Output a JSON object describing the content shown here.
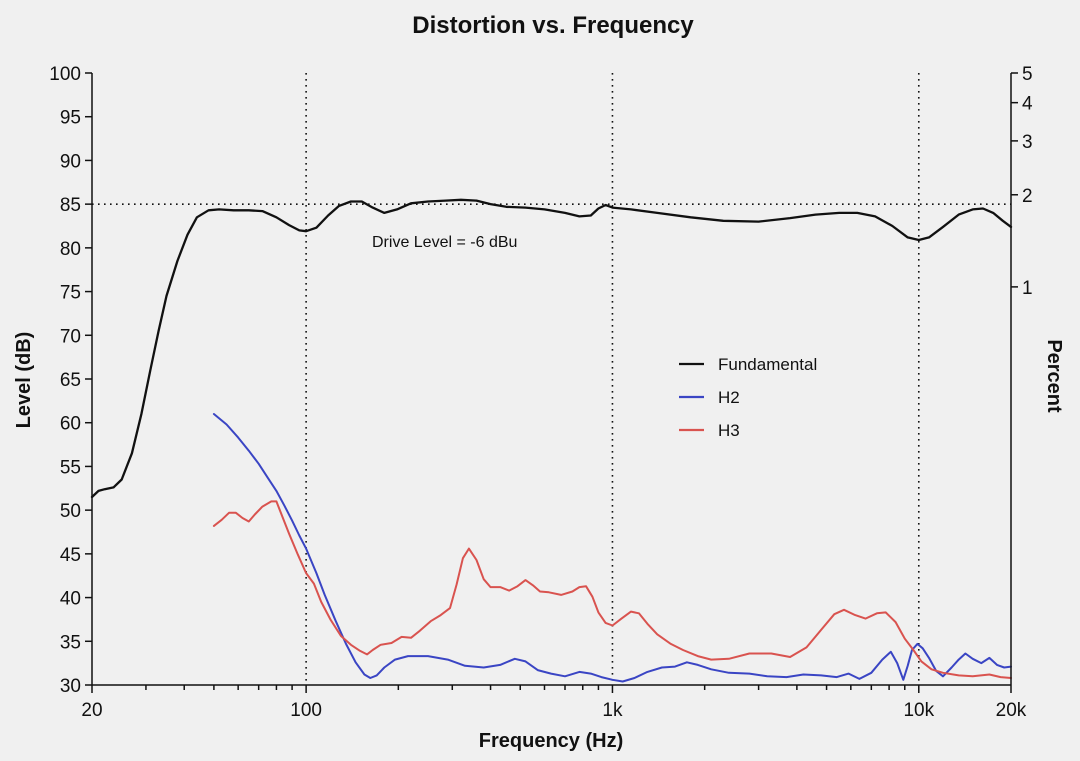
{
  "chart_data": {
    "type": "line",
    "title": "Distortion vs. Frequency",
    "xlabel": "Frequency (Hz)",
    "ylabel": "Level (dB)",
    "y2label": "Percent",
    "xscale": "log",
    "xlim": [
      20,
      20000
    ],
    "ylim": [
      30,
      100
    ],
    "y2lim": [
      0.05,
      5
    ],
    "y2scale": "log",
    "x_ticks": [
      {
        "value": 20,
        "label": "20"
      },
      {
        "value": 100,
        "label": "100"
      },
      {
        "value": 1000,
        "label": "1k"
      },
      {
        "value": 10000,
        "label": "10k"
      },
      {
        "value": 20000,
        "label": "20k"
      }
    ],
    "y_ticks": [
      {
        "value": 100,
        "label": "100"
      },
      {
        "value": 95,
        "label": "95"
      },
      {
        "value": 90,
        "label": "90"
      },
      {
        "value": 85,
        "label": "85"
      },
      {
        "value": 80,
        "label": "80"
      },
      {
        "value": 75,
        "label": "75"
      },
      {
        "value": 70,
        "label": "70"
      },
      {
        "value": 65,
        "label": "65"
      },
      {
        "value": 60,
        "label": "60"
      },
      {
        "value": 55,
        "label": "55"
      },
      {
        "value": 50,
        "label": "50"
      },
      {
        "value": 45,
        "label": "45"
      },
      {
        "value": 40,
        "label": "40"
      },
      {
        "value": 35,
        "label": "35"
      },
      {
        "value": 30,
        "label": "30"
      }
    ],
    "y2_ticks": [
      {
        "value": 5,
        "label": "5"
      },
      {
        "value": 4,
        "label": "4"
      },
      {
        "value": 3,
        "label": "3"
      },
      {
        "value": 2,
        "label": "2"
      },
      {
        "value": 1,
        "label": "1"
      }
    ],
    "reference_lines": {
      "vertical_x": [
        100,
        1000,
        10000
      ],
      "horizontal_y": 85
    },
    "annotation": "Drive Level = -6 dBu",
    "legend": {
      "position": "center-right"
    },
    "series": [
      {
        "name": "Fundamental",
        "color": "#111111",
        "points": [
          [
            20,
            51.5
          ],
          [
            21,
            52.2
          ],
          [
            22,
            52.4
          ],
          [
            23.5,
            52.6
          ],
          [
            25,
            53.5
          ],
          [
            27,
            56.5
          ],
          [
            29,
            61
          ],
          [
            31,
            66
          ],
          [
            33,
            70.5
          ],
          [
            35,
            74.5
          ],
          [
            38,
            78.5
          ],
          [
            41,
            81.5
          ],
          [
            44,
            83.5
          ],
          [
            48,
            84.3
          ],
          [
            52,
            84.4
          ],
          [
            58,
            84.3
          ],
          [
            65,
            84.3
          ],
          [
            72,
            84.2
          ],
          [
            80,
            83.5
          ],
          [
            88,
            82.6
          ],
          [
            95,
            82.0
          ],
          [
            100,
            81.9
          ],
          [
            108,
            82.3
          ],
          [
            118,
            83.7
          ],
          [
            128,
            84.8
          ],
          [
            140,
            85.3
          ],
          [
            152,
            85.3
          ],
          [
            165,
            84.6
          ],
          [
            180,
            84.0
          ],
          [
            198,
            84.4
          ],
          [
            220,
            85.1
          ],
          [
            250,
            85.3
          ],
          [
            285,
            85.4
          ],
          [
            320,
            85.5
          ],
          [
            360,
            85.4
          ],
          [
            400,
            85.0
          ],
          [
            450,
            84.7
          ],
          [
            520,
            84.6
          ],
          [
            600,
            84.4
          ],
          [
            700,
            84.0
          ],
          [
            780,
            83.6
          ],
          [
            850,
            83.7
          ],
          [
            900,
            84.5
          ],
          [
            950,
            84.9
          ],
          [
            1000,
            84.6
          ],
          [
            1150,
            84.4
          ],
          [
            1400,
            84.0
          ],
          [
            1800,
            83.5
          ],
          [
            2300,
            83.1
          ],
          [
            3000,
            83.0
          ],
          [
            3800,
            83.4
          ],
          [
            4600,
            83.8
          ],
          [
            5500,
            84.0
          ],
          [
            6300,
            84.0
          ],
          [
            7200,
            83.6
          ],
          [
            8200,
            82.5
          ],
          [
            9200,
            81.2
          ],
          [
            10000,
            80.9
          ],
          [
            10800,
            81.2
          ],
          [
            12000,
            82.4
          ],
          [
            13500,
            83.8
          ],
          [
            15000,
            84.4
          ],
          [
            16200,
            84.5
          ],
          [
            17500,
            84.0
          ],
          [
            18800,
            83.1
          ],
          [
            20000,
            82.4
          ]
        ]
      },
      {
        "name": "H2",
        "color": "#3a45c4",
        "points": [
          [
            50,
            61.0
          ],
          [
            55,
            59.8
          ],
          [
            60,
            58.3
          ],
          [
            65,
            56.8
          ],
          [
            70,
            55.3
          ],
          [
            75,
            53.7
          ],
          [
            80,
            52.2
          ],
          [
            85,
            50.5
          ],
          [
            90,
            48.8
          ],
          [
            95,
            47.1
          ],
          [
            100,
            45.6
          ],
          [
            108,
            42.8
          ],
          [
            115,
            40.3
          ],
          [
            125,
            37.3
          ],
          [
            135,
            34.7
          ],
          [
            145,
            32.6
          ],
          [
            155,
            31.2
          ],
          [
            162,
            30.8
          ],
          [
            170,
            31.1
          ],
          [
            180,
            32.0
          ],
          [
            195,
            32.9
          ],
          [
            215,
            33.3
          ],
          [
            250,
            33.3
          ],
          [
            290,
            32.9
          ],
          [
            330,
            32.2
          ],
          [
            380,
            32.0
          ],
          [
            430,
            32.3
          ],
          [
            480,
            33.0
          ],
          [
            520,
            32.7
          ],
          [
            570,
            31.7
          ],
          [
            630,
            31.3
          ],
          [
            700,
            31.0
          ],
          [
            780,
            31.5
          ],
          [
            850,
            31.3
          ],
          [
            920,
            30.9
          ],
          [
            1000,
            30.6
          ],
          [
            1080,
            30.4
          ],
          [
            1180,
            30.8
          ],
          [
            1300,
            31.5
          ],
          [
            1450,
            32.0
          ],
          [
            1600,
            32.1
          ],
          [
            1750,
            32.6
          ],
          [
            1900,
            32.3
          ],
          [
            2100,
            31.8
          ],
          [
            2400,
            31.4
          ],
          [
            2800,
            31.3
          ],
          [
            3200,
            31.0
          ],
          [
            3700,
            30.9
          ],
          [
            4200,
            31.2
          ],
          [
            4800,
            31.1
          ],
          [
            5400,
            30.9
          ],
          [
            5900,
            31.3
          ],
          [
            6400,
            30.7
          ],
          [
            7000,
            31.4
          ],
          [
            7600,
            32.9
          ],
          [
            8100,
            33.8
          ],
          [
            8500,
            32.5
          ],
          [
            8900,
            30.6
          ],
          [
            9200,
            32.2
          ],
          [
            9500,
            34.0
          ],
          [
            9900,
            34.7
          ],
          [
            10300,
            34.2
          ],
          [
            10800,
            33.1
          ],
          [
            11400,
            31.6
          ],
          [
            12000,
            31.0
          ],
          [
            12800,
            32.0
          ],
          [
            13500,
            32.9
          ],
          [
            14200,
            33.6
          ],
          [
            15000,
            33.0
          ],
          [
            16000,
            32.5
          ],
          [
            17000,
            33.1
          ],
          [
            18000,
            32.3
          ],
          [
            19000,
            32.0
          ],
          [
            20000,
            32.1
          ]
        ]
      },
      {
        "name": "H3",
        "color": "#d9534f",
        "points": [
          [
            50,
            48.2
          ],
          [
            53,
            48.9
          ],
          [
            56,
            49.7
          ],
          [
            59,
            49.7
          ],
          [
            62,
            49.1
          ],
          [
            65,
            48.7
          ],
          [
            68,
            49.5
          ],
          [
            72,
            50.4
          ],
          [
            77,
            51.0
          ],
          [
            80,
            51.0
          ],
          [
            84,
            49.1
          ],
          [
            88,
            47.3
          ],
          [
            94,
            44.9
          ],
          [
            100,
            42.8
          ],
          [
            106,
            41.6
          ],
          [
            112,
            39.5
          ],
          [
            120,
            37.5
          ],
          [
            130,
            35.6
          ],
          [
            140,
            34.6
          ],
          [
            150,
            33.9
          ],
          [
            158,
            33.5
          ],
          [
            165,
            34.0
          ],
          [
            175,
            34.6
          ],
          [
            190,
            34.8
          ],
          [
            205,
            35.5
          ],
          [
            220,
            35.4
          ],
          [
            235,
            36.2
          ],
          [
            255,
            37.3
          ],
          [
            275,
            38.0
          ],
          [
            295,
            38.8
          ],
          [
            310,
            41.5
          ],
          [
            325,
            44.5
          ],
          [
            340,
            45.6
          ],
          [
            360,
            44.3
          ],
          [
            380,
            42.1
          ],
          [
            400,
            41.2
          ],
          [
            430,
            41.2
          ],
          [
            460,
            40.8
          ],
          [
            490,
            41.3
          ],
          [
            520,
            42.0
          ],
          [
            550,
            41.4
          ],
          [
            580,
            40.7
          ],
          [
            620,
            40.6
          ],
          [
            680,
            40.3
          ],
          [
            740,
            40.7
          ],
          [
            780,
            41.2
          ],
          [
            820,
            41.3
          ],
          [
            860,
            40.1
          ],
          [
            900,
            38.3
          ],
          [
            950,
            37.1
          ],
          [
            1000,
            36.8
          ],
          [
            1070,
            37.6
          ],
          [
            1150,
            38.4
          ],
          [
            1220,
            38.2
          ],
          [
            1300,
            37.0
          ],
          [
            1400,
            35.8
          ],
          [
            1550,
            34.7
          ],
          [
            1700,
            34.0
          ],
          [
            1900,
            33.3
          ],
          [
            2100,
            32.9
          ],
          [
            2400,
            33.0
          ],
          [
            2800,
            33.6
          ],
          [
            3300,
            33.6
          ],
          [
            3800,
            33.2
          ],
          [
            4300,
            34.3
          ],
          [
            4800,
            36.3
          ],
          [
            5300,
            38.1
          ],
          [
            5700,
            38.6
          ],
          [
            6200,
            38.0
          ],
          [
            6700,
            37.6
          ],
          [
            7300,
            38.2
          ],
          [
            7800,
            38.3
          ],
          [
            8400,
            37.2
          ],
          [
            9000,
            35.3
          ],
          [
            9600,
            34.0
          ],
          [
            10200,
            32.7
          ],
          [
            11000,
            31.8
          ],
          [
            12000,
            31.4
          ],
          [
            13500,
            31.1
          ],
          [
            15000,
            31.0
          ],
          [
            17000,
            31.2
          ],
          [
            18500,
            30.9
          ],
          [
            20000,
            30.8
          ]
        ]
      }
    ]
  }
}
